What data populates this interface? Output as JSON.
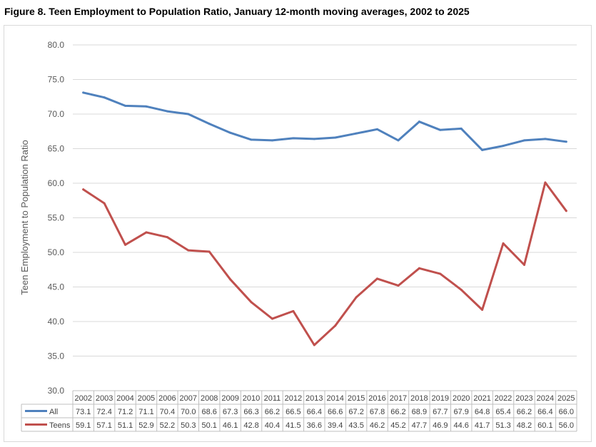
{
  "figure_title": "Figure 8. Teen Employment to Population Ratio, January 12-month moving averages, 2002 to 2025",
  "chart_data": {
    "type": "line",
    "title": "",
    "xlabel": "",
    "ylabel": "Teen Employment to Population Ratio",
    "ylim": [
      30,
      80
    ],
    "y_ticks": [
      "30.0",
      "35.0",
      "40.0",
      "45.0",
      "50.0",
      "55.0",
      "60.0",
      "65.0",
      "70.0",
      "75.0",
      "80.0"
    ],
    "grid": "horizontal",
    "legend": "data-table",
    "categories": [
      "2002",
      "2003",
      "2004",
      "2005",
      "2006",
      "2007",
      "2008",
      "2009",
      "2010",
      "2011",
      "2012",
      "2013",
      "2014",
      "2015",
      "2016",
      "2017",
      "2018",
      "2019",
      "2020",
      "2021",
      "2022",
      "2023",
      "2024",
      "2025"
    ],
    "series": [
      {
        "name": "All",
        "color": "#4f81bd",
        "values": [
          73.1,
          72.4,
          71.2,
          71.1,
          70.4,
          70.0,
          68.6,
          67.3,
          66.3,
          66.2,
          66.5,
          66.4,
          66.6,
          67.2,
          67.8,
          66.2,
          68.9,
          67.7,
          67.9,
          64.8,
          65.4,
          66.2,
          66.4,
          66.0
        ]
      },
      {
        "name": "Teens",
        "color": "#c0504d",
        "values": [
          59.1,
          57.1,
          51.1,
          52.9,
          52.2,
          50.3,
          50.1,
          46.1,
          42.8,
          40.4,
          41.5,
          36.6,
          39.4,
          43.5,
          46.2,
          45.2,
          47.7,
          46.9,
          44.6,
          41.7,
          51.3,
          48.2,
          60.1,
          56.0
        ]
      }
    ]
  }
}
